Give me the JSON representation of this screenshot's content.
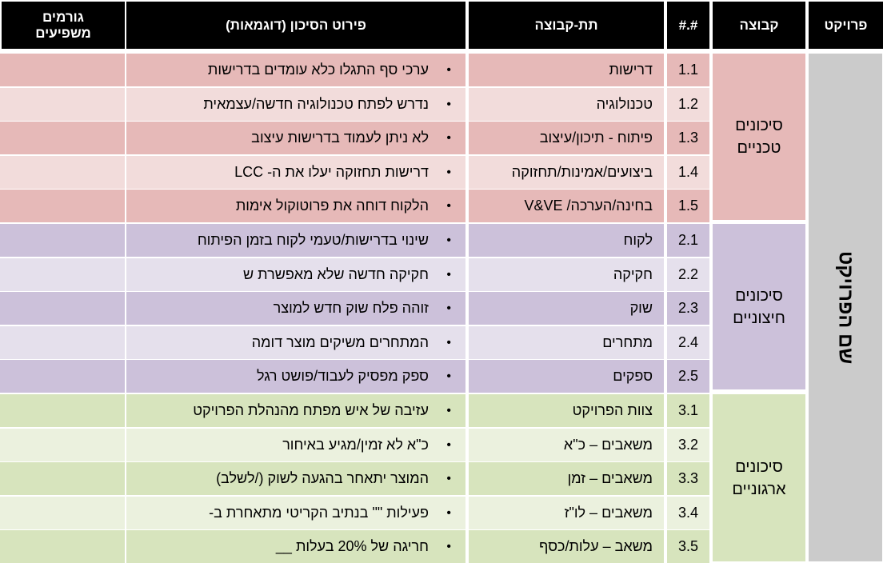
{
  "headers": {
    "project": "פרויקט",
    "group": "קבוצה",
    "number": "#.#",
    "subgroup": "תת-קבוצה",
    "detail": "פירוט הסיכון (דוגמאות)",
    "factors": "גורמים משפיעים"
  },
  "project_name": "שם הפרויקט",
  "colors": {
    "technical_dark": "#e6b9b8",
    "technical_light": "#f2dcdb",
    "external_dark": "#ccc1da",
    "external_light": "#e5e0ec",
    "organizational_dark": "#d7e4bd",
    "organizational_light": "#ebf1de",
    "project_col": "#cbcbcb"
  },
  "bullet": "•",
  "groups": [
    {
      "label": "סיכונים טכניים",
      "rows": [
        {
          "num": "1.1",
          "sub": "דרישות",
          "detail": "ערכי סף התגלו כלא עומדים בדרישות",
          "factors": ""
        },
        {
          "num": "1.2",
          "sub": "טכנולוגיה",
          "detail": "נדרש לפתח טכנולוגיה חדשה/עצמאית",
          "factors": ""
        },
        {
          "num": "1.3",
          "sub": "פיתוח - תיכון/עיצוב",
          "detail": "לא ניתן לעמוד בדרישות עיצוב",
          "factors": ""
        },
        {
          "num": "1.4",
          "sub": "ביצועים/אמינות/תחזוקה",
          "detail": "דרישות תחזוקה יעלו את ה- LCC",
          "factors": ""
        },
        {
          "num": "1.5",
          "sub": "בחינה/הערכה/ V&VE",
          "detail": "הלקוח דוחה את פרוטוקול אימות",
          "factors": ""
        }
      ]
    },
    {
      "label": "סיכונים חיצוניים",
      "rows": [
        {
          "num": "2.1",
          "sub": "לקוח",
          "detail": "שינוי בדרישות/טעמי לקוח בזמן הפיתוח",
          "factors": ""
        },
        {
          "num": "2.2",
          "sub": "חקיקה",
          "detail": "חקיקה חדשה שלא מאפשרת ש",
          "factors": ""
        },
        {
          "num": "2.3",
          "sub": "שוק",
          "detail": "זוהה פלח שוק חדש למוצר",
          "factors": ""
        },
        {
          "num": "2.4",
          "sub": "מתחרים",
          "detail": "המתחרים משיקים מוצר דומה",
          "factors": ""
        },
        {
          "num": "2.5",
          "sub": "ספקים",
          "detail": "ספק מפסיק לעבוד/פושט רגל",
          "factors": ""
        }
      ]
    },
    {
      "label": "סיכונים ארגוניים",
      "rows": [
        {
          "num": "3.1",
          "sub": "צוות הפרויקט",
          "detail": "עזיבה של איש מפתח מהנהלת הפרויקט",
          "factors": ""
        },
        {
          "num": "3.2",
          "sub": "משאבים – כ\"א",
          "detail": "כ\"א לא זמין/מגיע באיחור",
          "factors": ""
        },
        {
          "num": "3.3",
          "sub": "משאבים – זמן",
          "detail": "המוצר יתאחר בהגעה לשוק (/לשלב)",
          "factors": ""
        },
        {
          "num": "3.4",
          "sub": "משאבים – לו\"ז",
          "detail": "פעילות \"\" בנתיב הקריטי מתאחרת ב-",
          "factors": ""
        },
        {
          "num": "3.5",
          "sub": "משאב – עלות/כסף",
          "detail": "חריגה של 20% בעלות __",
          "factors": ""
        }
      ]
    }
  ]
}
